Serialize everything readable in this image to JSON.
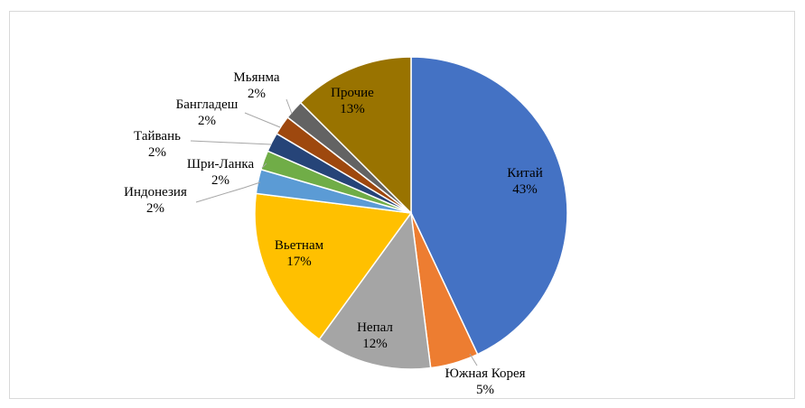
{
  "chart_data": {
    "type": "pie",
    "title": "",
    "start_angle_deg": 0,
    "direction": "clockwise",
    "slices": [
      {
        "label": "Китай",
        "value_label": "43%",
        "value": 43,
        "color": "#4472C4",
        "label_inside": true,
        "text_color": "#000000"
      },
      {
        "label": "Южная Корея",
        "value_label": "5%",
        "value": 5,
        "color": "#ED7D31",
        "label_inside": false,
        "text_color": "#000000"
      },
      {
        "label": "Непал",
        "value_label": "12%",
        "value": 12,
        "color": "#A5A5A5",
        "label_inside": true,
        "text_color": "#000000"
      },
      {
        "label": "Вьетнам",
        "value_label": "17%",
        "value": 17,
        "color": "#FFC000",
        "label_inside": true,
        "text_color": "#000000"
      },
      {
        "label": "Индонезия",
        "value_label": "2%",
        "value": 2.5,
        "color": "#5B9BD5",
        "label_inside": false,
        "text_color": "#000000"
      },
      {
        "label": "Шри-Ланка",
        "value_label": "2%",
        "value": 2,
        "color": "#70AD47",
        "label_inside": false,
        "text_color": "#000000"
      },
      {
        "label": "Тайвань",
        "value_label": "2%",
        "value": 2,
        "color": "#264478",
        "label_inside": false,
        "text_color": "#000000"
      },
      {
        "label": "Бангладеш",
        "value_label": "2%",
        "value": 2,
        "color": "#9E480E",
        "label_inside": false,
        "text_color": "#000000"
      },
      {
        "label": "Мьянма",
        "value_label": "2%",
        "value": 2,
        "color": "#636363",
        "label_inside": false,
        "text_color": "#000000"
      },
      {
        "label": "Прочие",
        "value_label": "13%",
        "value": 12.5,
        "color": "#997300",
        "label_inside": true,
        "text_color": "#000000"
      }
    ]
  }
}
